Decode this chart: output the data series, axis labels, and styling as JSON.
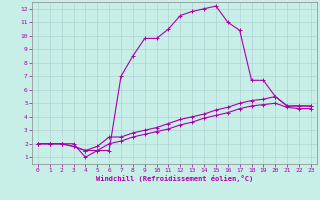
{
  "xlabel": "Windchill (Refroidissement éolien,°C)",
  "xlim": [
    -0.5,
    23.5
  ],
  "ylim": [
    0.5,
    12.5
  ],
  "xticks": [
    0,
    1,
    2,
    3,
    4,
    5,
    6,
    7,
    8,
    9,
    10,
    11,
    12,
    13,
    14,
    15,
    16,
    17,
    18,
    19,
    20,
    21,
    22,
    23
  ],
  "yticks": [
    1,
    2,
    3,
    4,
    5,
    6,
    7,
    8,
    9,
    10,
    11,
    12
  ],
  "bg_color": "#c8eee8",
  "grid_color": "#aacccc",
  "line_color": "#aa00aa",
  "line1_x": [
    0,
    1,
    2,
    3,
    4,
    5,
    6,
    7,
    8,
    9,
    10,
    11,
    12,
    13,
    14,
    15,
    16,
    17,
    18,
    19,
    20,
    21,
    22,
    23
  ],
  "line1_y": [
    2,
    2,
    2,
    2,
    1,
    1.5,
    1.5,
    7,
    8.5,
    9.8,
    9.8,
    10.5,
    11.5,
    11.8,
    12,
    12.2,
    11,
    10.4,
    6.7,
    6.7,
    5.5,
    4.8,
    4.8,
    4.8
  ],
  "line2_x": [
    0,
    1,
    2,
    3,
    4,
    5,
    6,
    7,
    8,
    9,
    10,
    11,
    12,
    13,
    14,
    15,
    16,
    17,
    18,
    19,
    20,
    21,
    22,
    23
  ],
  "line2_y": [
    2,
    2,
    2,
    1.8,
    1.5,
    1.8,
    2.5,
    2.5,
    2.8,
    3.0,
    3.2,
    3.5,
    3.8,
    4.0,
    4.2,
    4.5,
    4.7,
    5.0,
    5.2,
    5.3,
    5.5,
    4.8,
    4.8,
    4.8
  ],
  "line3_x": [
    0,
    1,
    2,
    3,
    4,
    5,
    6,
    7,
    8,
    9,
    10,
    11,
    12,
    13,
    14,
    15,
    16,
    17,
    18,
    19,
    20,
    21,
    22,
    23
  ],
  "line3_y": [
    2,
    2,
    2,
    1.8,
    1.5,
    1.5,
    2.0,
    2.2,
    2.5,
    2.7,
    2.9,
    3.1,
    3.4,
    3.6,
    3.9,
    4.1,
    4.3,
    4.6,
    4.8,
    4.9,
    5.0,
    4.7,
    4.6,
    4.6
  ],
  "tick_fontsize": 4.5,
  "xlabel_fontsize": 5.0
}
